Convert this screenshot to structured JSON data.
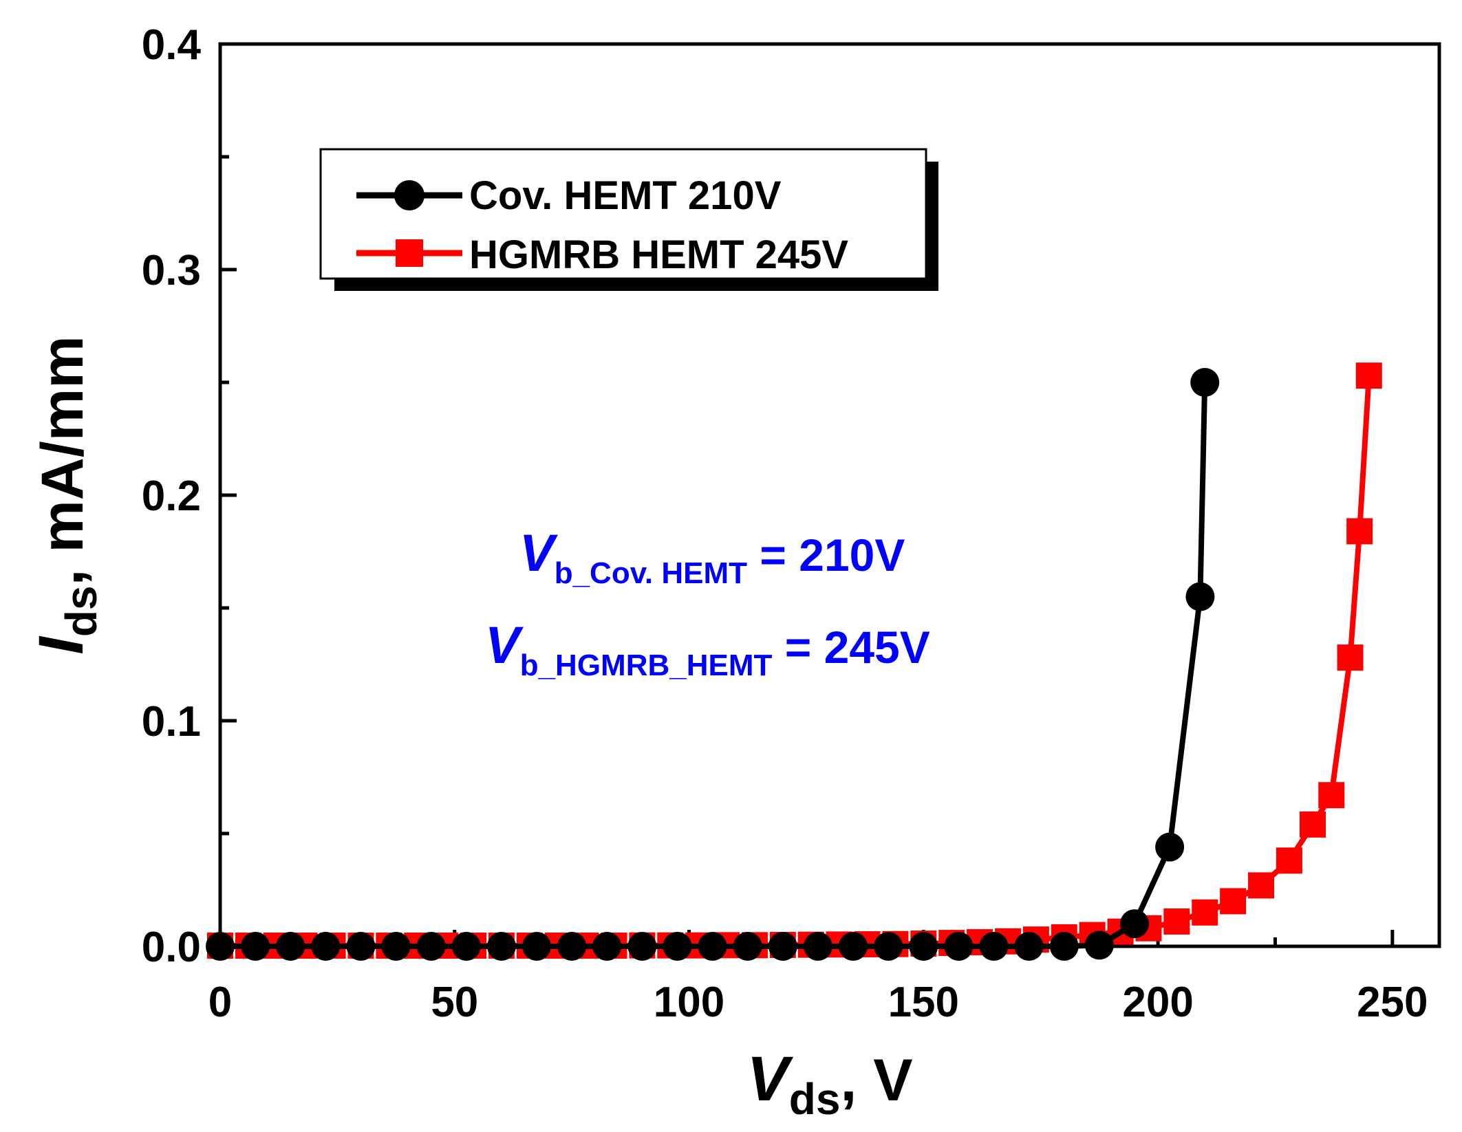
{
  "chart_data": {
    "type": "line",
    "x_axis": {
      "label_main": "V",
      "label_sub": "ds",
      "label_suffix": ", V",
      "range": [
        0,
        260
      ],
      "major_ticks": [
        0,
        50,
        100,
        150,
        200,
        250
      ],
      "tick_labels": [
        "0",
        "50",
        "100",
        "150",
        "200",
        "250"
      ],
      "minor_step": 25
    },
    "y_axis": {
      "label_main": "I",
      "label_sub": "ds",
      "label_suffix": ", mA/mm",
      "range": [
        0,
        0.4
      ],
      "major_ticks": [
        0,
        0.1,
        0.2,
        0.3,
        0.4
      ],
      "tick_labels": [
        "0.0",
        "0.1",
        "0.2",
        "0.3",
        "0.4"
      ],
      "minor_step": 0.05
    },
    "grid": false,
    "legend_position": "top-left",
    "series": [
      {
        "name": "HGMRB HEMT 245V",
        "color": "#ff0000",
        "marker": "square",
        "x": [
          0,
          6,
          12,
          18,
          24,
          30,
          36,
          42,
          48,
          54,
          60,
          66,
          72,
          78,
          84,
          90,
          96,
          102,
          108,
          114,
          120,
          126,
          132,
          138,
          144,
          150,
          156,
          162,
          168,
          174,
          180,
          186,
          192,
          198,
          204,
          210,
          216,
          222,
          228,
          233,
          237,
          241,
          243,
          245
        ],
        "y": [
          0.0003,
          0.0003,
          0.0003,
          0.0003,
          0.0003,
          0.0003,
          0.0003,
          0.0003,
          0.0003,
          0.0003,
          0.0003,
          0.0003,
          0.0003,
          0.0003,
          0.0003,
          0.0004,
          0.0004,
          0.0004,
          0.0005,
          0.0005,
          0.0006,
          0.0007,
          0.0008,
          0.0009,
          0.001,
          0.0012,
          0.0015,
          0.0018,
          0.0022,
          0.003,
          0.004,
          0.005,
          0.0065,
          0.008,
          0.011,
          0.015,
          0.02,
          0.027,
          0.038,
          0.054,
          0.067,
          0.128,
          0.184,
          0.253
        ]
      },
      {
        "name": "Cov. HEMT 210V",
        "color": "#000000",
        "marker": "circle",
        "x": [
          0,
          7.5,
          15,
          22.5,
          30,
          37.5,
          45,
          52.5,
          60,
          67.5,
          75,
          82.5,
          90,
          97.5,
          105,
          112.5,
          120,
          127.5,
          135,
          142.5,
          150,
          157.5,
          165,
          172.5,
          180,
          187.5,
          195,
          202.5,
          209,
          210
        ],
        "y": [
          0,
          0,
          0,
          0,
          0,
          0,
          0,
          0,
          0,
          0,
          0,
          0,
          0,
          0,
          0,
          0,
          0,
          0,
          0,
          0,
          0,
          0,
          0,
          0,
          0,
          0.0005,
          0.01,
          0.044,
          0.155,
          0.25
        ]
      }
    ],
    "legend": [
      {
        "label": "Cov. HEMT 210V",
        "color": "#000000",
        "marker": "circle"
      },
      {
        "label": "HGMRB HEMT 245V",
        "color": "#ff0000",
        "marker": "square"
      }
    ],
    "annotations": [
      {
        "main": "V",
        "sub": "b_Cov. HEMT",
        "rest": " = 210V",
        "color": "#0000ff"
      },
      {
        "main": "V",
        "sub": "b_HGMRB_HEMT",
        "rest": " = 245V",
        "color": "#0000ff"
      }
    ]
  }
}
